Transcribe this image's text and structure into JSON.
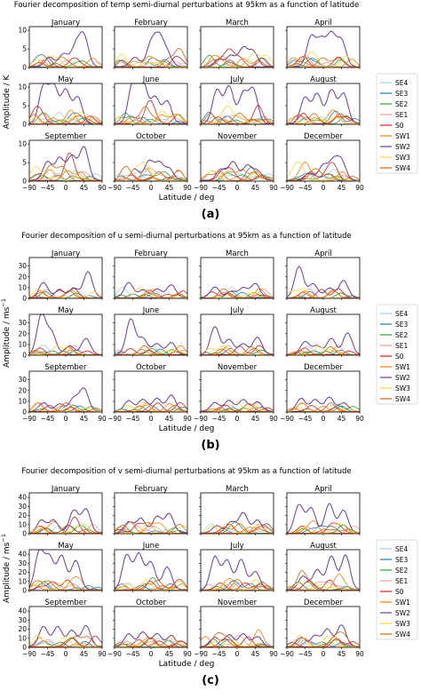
{
  "figure": {
    "legend_entries": [
      {
        "label": "SE4",
        "color": "#a6cee3"
      },
      {
        "label": "SE3",
        "color": "#1f78b4"
      },
      {
        "label": "SE2",
        "color": "#33a02c"
      },
      {
        "label": "SE1",
        "color": "#fb9a99"
      },
      {
        "label": "S0",
        "color": "#e31a1c"
      },
      {
        "label": "SW1",
        "color": "#ff7f00"
      },
      {
        "label": "SW2",
        "color": "#6a3d9a"
      },
      {
        "label": "SW3",
        "color": "#ffd92f"
      },
      {
        "label": "SW4",
        "color": "#d95f02"
      }
    ],
    "months": [
      "January",
      "February",
      "March",
      "April",
      "May",
      "June",
      "July",
      "August",
      "September",
      "October",
      "November",
      "December"
    ],
    "x_ticks": [
      -90,
      -45,
      0,
      45,
      90
    ],
    "x_tick_labels": [
      "−90",
      "−45",
      "0",
      "45",
      "90"
    ],
    "xlabel": "Latitude / deg"
  },
  "chart_data": [
    {
      "type": "line",
      "panel_label": "(a)",
      "title": "Fourier decomposition of temp semi-diurnal perturbations at 95km as a function of latitude",
      "xlabel": "Latitude / deg",
      "ylabel": "Amplitude / K",
      "xlim": [
        -90,
        90
      ],
      "ylim": [
        0,
        11
      ],
      "yticks": [
        0,
        5,
        10
      ],
      "grid": false,
      "legend_position": "right",
      "series_names": [
        "SE4",
        "SE3",
        "SE2",
        "SE1",
        "S0",
        "SW1",
        "SW2",
        "SW3",
        "SW4"
      ],
      "sw2_peaks": {
        "January": [
          [
            -40,
            2.5
          ],
          [
            -5,
            3.5
          ],
          [
            25,
            5.5
          ],
          [
            45,
            8
          ]
        ],
        "February": [
          [
            -40,
            2.5
          ],
          [
            0,
            6
          ],
          [
            20,
            7.5
          ],
          [
            40,
            3.5
          ]
        ],
        "March": [
          [
            -45,
            2
          ],
          [
            -15,
            3
          ],
          [
            15,
            5
          ],
          [
            40,
            4
          ]
        ],
        "April": [
          [
            -30,
            8
          ],
          [
            -5,
            7
          ],
          [
            20,
            8.5
          ],
          [
            45,
            7
          ]
        ],
        "May": [
          [
            -55,
            10
          ],
          [
            -30,
            10
          ],
          [
            0,
            9
          ],
          [
            30,
            7
          ]
        ],
        "June": [
          [
            -45,
            11
          ],
          [
            -20,
            11
          ],
          [
            10,
            7
          ],
          [
            40,
            6
          ]
        ],
        "July": [
          [
            -50,
            9
          ],
          [
            -20,
            10
          ],
          [
            15,
            8
          ],
          [
            40,
            9
          ]
        ],
        "August": [
          [
            -45,
            7
          ],
          [
            -15,
            8
          ],
          [
            20,
            9
          ],
          [
            50,
            8
          ]
        ],
        "September": [
          [
            -45,
            5
          ],
          [
            -15,
            6
          ],
          [
            15,
            6.5
          ],
          [
            45,
            9
          ]
        ],
        "October": [
          [
            -40,
            3
          ],
          [
            -5,
            5
          ],
          [
            20,
            4.5
          ],
          [
            45,
            3
          ]
        ],
        "November": [
          [
            -40,
            3
          ],
          [
            -10,
            5
          ],
          [
            25,
            4
          ],
          [
            50,
            2.5
          ]
        ],
        "December": [
          [
            -35,
            2
          ],
          [
            0,
            4
          ],
          [
            25,
            5
          ],
          [
            45,
            5
          ]
        ]
      },
      "other_max": 3
    },
    {
      "type": "line",
      "panel_label": "(b)",
      "title": "Fourier decomposition of u semi-diurnal perturbations at 95km as a function of latitude",
      "xlabel": "Latitude / deg",
      "ylabel_main": "Amplitude / ms",
      "ylabel_sup": "−1",
      "xlim": [
        -90,
        90
      ],
      "ylim": [
        0,
        38
      ],
      "yticks": [
        0,
        10,
        20,
        30
      ],
      "grid": false,
      "legend_position": "right",
      "series_names": [
        "SE4",
        "SE3",
        "SE2",
        "SE1",
        "S0",
        "SW1",
        "SW2",
        "SW3",
        "SW4"
      ],
      "sw2_peaks": {
        "January": [
          [
            -55,
            14
          ],
          [
            -15,
            7
          ],
          [
            20,
            9
          ],
          [
            55,
            24
          ]
        ],
        "February": [
          [
            -55,
            14
          ],
          [
            -20,
            7
          ],
          [
            15,
            8
          ],
          [
            50,
            12
          ]
        ],
        "March": [
          [
            -55,
            10
          ],
          [
            -15,
            6
          ],
          [
            15,
            9
          ],
          [
            45,
            13
          ]
        ],
        "April": [
          [
            -60,
            29
          ],
          [
            -25,
            13
          ],
          [
            15,
            9
          ],
          [
            50,
            16
          ]
        ],
        "May": [
          [
            -60,
            37
          ],
          [
            -35,
            20
          ],
          [
            10,
            8
          ],
          [
            50,
            15
          ]
        ],
        "June": [
          [
            -50,
            33
          ],
          [
            -20,
            15
          ],
          [
            15,
            10
          ],
          [
            50,
            11
          ]
        ],
        "July": [
          [
            -55,
            26
          ],
          [
            -20,
            14
          ],
          [
            15,
            10
          ],
          [
            50,
            16
          ]
        ],
        "August": [
          [
            -45,
            12
          ],
          [
            -15,
            8
          ],
          [
            20,
            15
          ],
          [
            60,
            20
          ]
        ],
        "September": [
          [
            -55,
            8
          ],
          [
            -15,
            7
          ],
          [
            20,
            12
          ],
          [
            45,
            21
          ]
        ],
        "October": [
          [
            -55,
            10
          ],
          [
            -20,
            11
          ],
          [
            15,
            12
          ],
          [
            50,
            15
          ]
        ],
        "November": [
          [
            -55,
            8
          ],
          [
            -20,
            10
          ],
          [
            15,
            11
          ],
          [
            50,
            9
          ]
        ],
        "December": [
          [
            -55,
            12
          ],
          [
            -20,
            11
          ],
          [
            15,
            13
          ],
          [
            50,
            8
          ]
        ]
      },
      "other_max": 9
    },
    {
      "type": "line",
      "panel_label": "(c)",
      "title": "Fourier decomposition of v semi-diurnal perturbations at 95km as a function of latitude",
      "xlabel": "Latitude / deg",
      "ylabel_main": "Amplitude / ms",
      "ylabel_sup": "−1",
      "xlim": [
        -90,
        90
      ],
      "ylim": [
        0,
        45
      ],
      "yticks": [
        0,
        10,
        20,
        30,
        40
      ],
      "grid": false,
      "legend_position": "right",
      "series_names": [
        "SE4",
        "SE3",
        "SE2",
        "SE1",
        "S0",
        "SW1",
        "SW2",
        "SW3",
        "SW4"
      ],
      "sw2_peaks": {
        "January": [
          [
            -60,
            14
          ],
          [
            -30,
            14
          ],
          [
            20,
            25
          ],
          [
            50,
            26
          ]
        ],
        "February": [
          [
            -55,
            12
          ],
          [
            -25,
            16
          ],
          [
            15,
            18
          ],
          [
            45,
            21
          ]
        ],
        "March": [
          [
            -50,
            8
          ],
          [
            -15,
            12
          ],
          [
            15,
            22
          ],
          [
            50,
            14
          ]
        ],
        "April": [
          [
            -60,
            31
          ],
          [
            -30,
            27
          ],
          [
            15,
            32
          ],
          [
            50,
            25
          ]
        ],
        "May": [
          [
            -65,
            42
          ],
          [
            -40,
            35
          ],
          [
            -10,
            37
          ],
          [
            25,
            32
          ]
        ],
        "June": [
          [
            -60,
            38
          ],
          [
            -30,
            39
          ],
          [
            0,
            30
          ],
          [
            40,
            25
          ]
        ],
        "July": [
          [
            -55,
            36
          ],
          [
            -25,
            32
          ],
          [
            10,
            33
          ],
          [
            45,
            20
          ]
        ],
        "August": [
          [
            -50,
            15
          ],
          [
            -15,
            22
          ],
          [
            20,
            37
          ],
          [
            55,
            38
          ]
        ],
        "September": [
          [
            -55,
            22
          ],
          [
            -20,
            22
          ],
          [
            15,
            18
          ],
          [
            50,
            23
          ]
        ],
        "October": [
          [
            -55,
            14
          ],
          [
            -20,
            16
          ],
          [
            15,
            14
          ],
          [
            50,
            12
          ]
        ],
        "November": [
          [
            -55,
            10
          ],
          [
            -20,
            13
          ],
          [
            15,
            14
          ],
          [
            50,
            11
          ]
        ],
        "December": [
          [
            -55,
            10
          ],
          [
            -20,
            12
          ],
          [
            10,
            19
          ],
          [
            45,
            24
          ]
        ]
      },
      "other_max": 12
    }
  ]
}
